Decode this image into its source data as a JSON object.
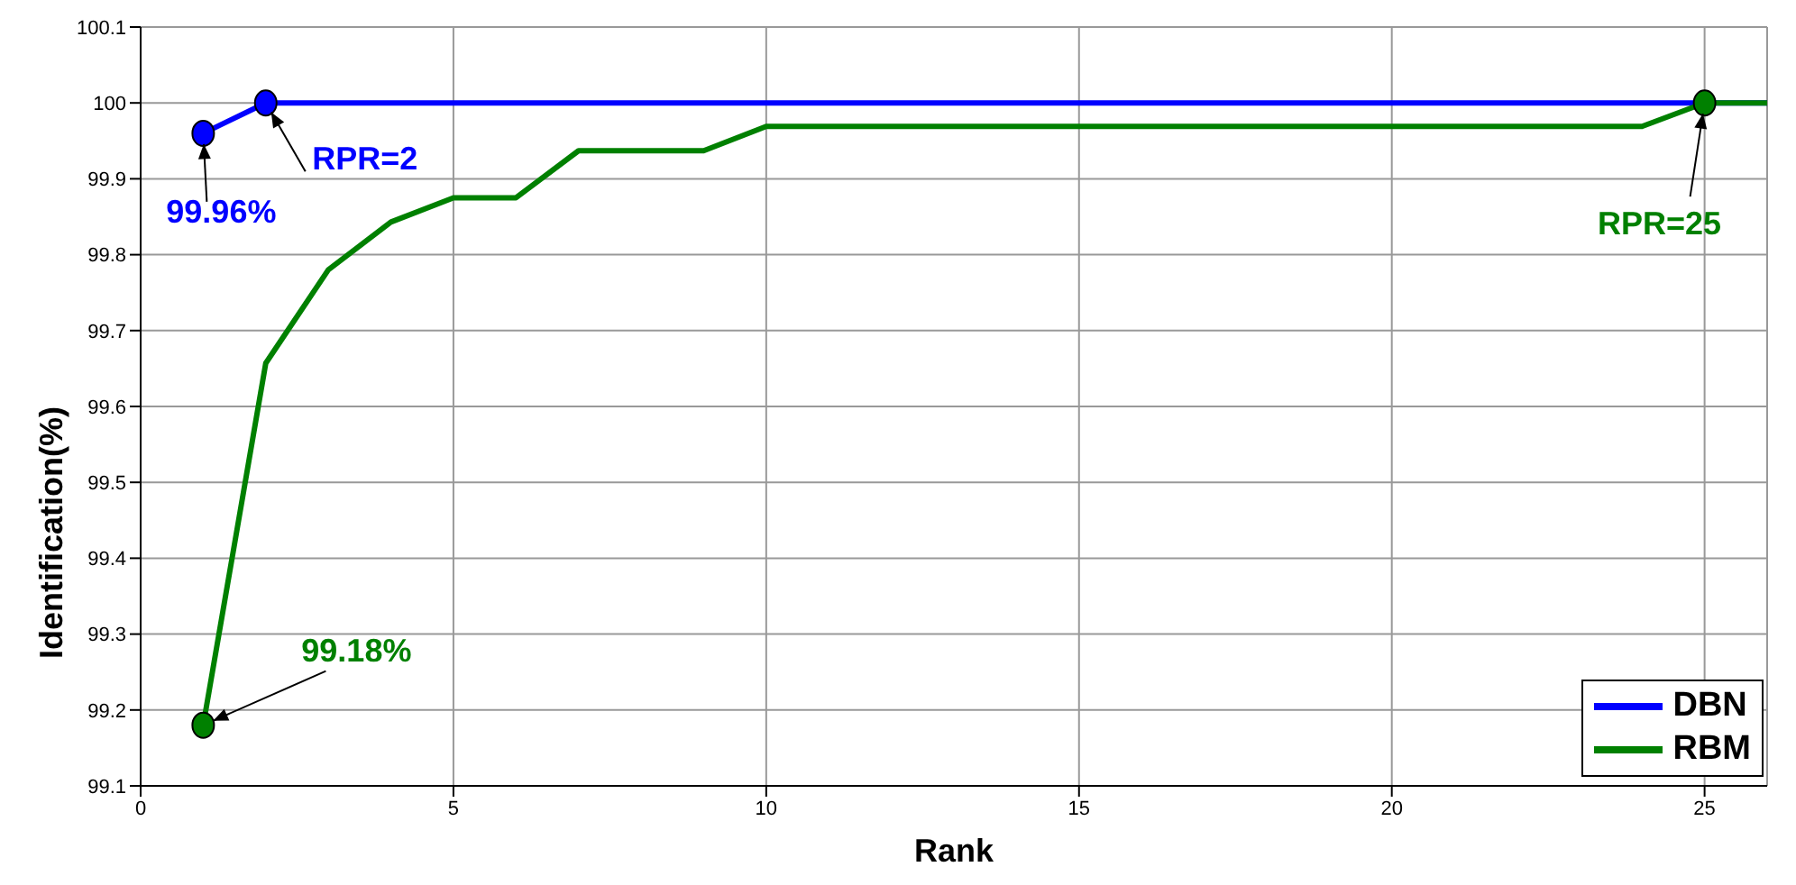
{
  "chart_data": {
    "type": "line",
    "xlabel": "Rank",
    "ylabel": "Identification(%)",
    "x": [
      1,
      2,
      3,
      4,
      5,
      6,
      7,
      8,
      9,
      10,
      11,
      12,
      13,
      14,
      15,
      16,
      17,
      18,
      19,
      20,
      21,
      22,
      23,
      24,
      25,
      26
    ],
    "series": [
      {
        "name": "DBN",
        "color": "#0000ff",
        "values": [
          99.96,
          100,
          100,
          100,
          100,
          100,
          100,
          100,
          100,
          100,
          100,
          100,
          100,
          100,
          100,
          100,
          100,
          100,
          100,
          100,
          100,
          100,
          100,
          100,
          100,
          100
        ]
      },
      {
        "name": "RBM",
        "color": "#008000",
        "values": [
          99.18,
          99.657,
          99.78,
          99.843,
          99.875,
          99.875,
          99.937,
          99.937,
          99.937,
          99.969,
          99.969,
          99.969,
          99.969,
          99.969,
          99.969,
          99.969,
          99.969,
          99.969,
          99.969,
          99.969,
          99.969,
          99.969,
          99.969,
          99.969,
          100,
          100
        ]
      }
    ],
    "annotations": [
      {
        "text": "99.96%",
        "x": 1,
        "y": 99.96
      },
      {
        "text": "RPR=2",
        "x": 2,
        "y": 100
      },
      {
        "text": "99.18%",
        "x": 1,
        "y": 99.18
      },
      {
        "text": "RPR=25",
        "x": 25,
        "y": 100
      }
    ],
    "xlim": [
      0,
      26
    ],
    "xticks": [
      0,
      5,
      10,
      15,
      20,
      25
    ],
    "ylim": [
      99.1,
      100.1
    ],
    "yticks": [
      99.1,
      99.2,
      99.3,
      99.4,
      99.5,
      99.6,
      99.7,
      99.8,
      99.9,
      100,
      100.1
    ],
    "grid": true,
    "legend": "bottom right"
  }
}
